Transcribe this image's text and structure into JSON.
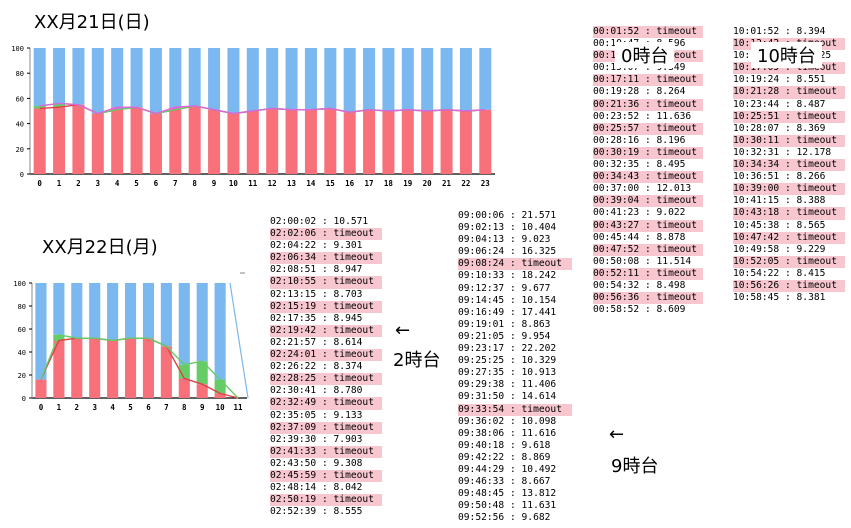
{
  "labels": {
    "day1_title": "XX月21日(日)",
    "day2_title": "XX月22日(月)",
    "hour0": "0時台",
    "hour10": "10時台",
    "hour2": "2時台",
    "hour9": "9時台",
    "arrow": "←"
  },
  "chart_data": [
    {
      "type": "bar",
      "stacked": true,
      "categories": [
        "0",
        "1",
        "2",
        "3",
        "4",
        "5",
        "6",
        "7",
        "8",
        "9",
        "10",
        "11",
        "12",
        "13",
        "14",
        "15",
        "16",
        "17",
        "18",
        "19",
        "20",
        "21",
        "22",
        "23"
      ],
      "ylim": [
        0,
        100
      ],
      "yticks": [
        "0",
        "20",
        "40",
        "60",
        "80",
        "100"
      ],
      "series": [
        {
          "color": "#f7707a",
          "values": [
            52,
            53,
            55,
            48,
            51,
            53,
            48,
            51,
            54,
            51,
            48,
            50,
            52,
            51,
            51,
            52,
            49,
            51,
            50,
            51,
            50,
            51,
            50,
            51
          ]
        },
        {
          "color": "#66cc66",
          "values": [
            2,
            3,
            0,
            0,
            0,
            0,
            0,
            0,
            0,
            0,
            0,
            0,
            0,
            0,
            0,
            0,
            0,
            0,
            0,
            0,
            0,
            0,
            0,
            0
          ]
        },
        {
          "color": "#dd66dd",
          "values": [
            0,
            0,
            0,
            0,
            2,
            0,
            0,
            2,
            0,
            0,
            0,
            0,
            0,
            0,
            0,
            0,
            0,
            0,
            0,
            0,
            0,
            0,
            0,
            0
          ]
        },
        {
          "color": "#7cb8f0",
          "values": [
            46,
            44,
            45,
            52,
            47,
            47,
            52,
            47,
            46,
            49,
            52,
            50,
            48,
            49,
            49,
            48,
            51,
            49,
            50,
            49,
            50,
            49,
            50,
            49
          ]
        }
      ]
    },
    {
      "type": "bar",
      "stacked": true,
      "categories": [
        "0",
        "1",
        "2",
        "3",
        "4",
        "5",
        "6",
        "7",
        "8",
        "9",
        "10",
        "11"
      ],
      "ylim": [
        0,
        100
      ],
      "yticks": [
        "0",
        "20",
        "40",
        "60",
        "80",
        "100"
      ],
      "series": [
        {
          "color": "#f7707a",
          "values": [
            16,
            50,
            52,
            52,
            50,
            52,
            52,
            45,
            17,
            12,
            4,
            0
          ]
        },
        {
          "color": "#66cc66",
          "values": [
            0,
            5,
            0,
            0,
            0,
            0,
            0,
            0,
            12,
            20,
            12,
            0
          ]
        },
        {
          "color": "#7cb8f0",
          "values": [
            84,
            45,
            48,
            48,
            50,
            48,
            48,
            55,
            71,
            68,
            84,
            0
          ]
        }
      ]
    }
  ],
  "log_00": [
    "00:01:52 : timeout",
    "00:10:47 : 8.596",
    "00:12:51 : timeout",
    "00:15:07 : 9.349",
    "00:17:11 : timeout",
    "00:19:28 : 8.264",
    "00:21:36 : timeout",
    "00:23:52 : 11.636",
    "00:25:57 : timeout",
    "00:28:16 : 8.196",
    "00:30:19 : timeout",
    "00:32:35 : 8.495",
    "00:34:43 : timeout",
    "00:37:00 : 12.013",
    "00:39:04 : timeout",
    "00:41:23 : 9.022",
    "00:43:27 : timeout",
    "00:45:44 : 8.878",
    "00:47:52 : timeout",
    "00:50:08 : 11.514",
    "00:52:11 : timeout",
    "00:54:32 : 8.498",
    "00:56:36 : timeout",
    "00:58:52 : 8.609"
  ],
  "log_10": [
    "10:01:52 : 8.394",
    "10:12:42 : timeout",
    "10:14:57 : 11.425",
    "10:17:05 : timeout",
    "10:19:24 : 8.551",
    "10:21:28 : timeout",
    "10:23:44 : 8.487",
    "10:25:51 : timeout",
    "10:28:07 : 8.369",
    "10:30:11 : timeout",
    "10:32:31 : 12.178",
    "10:34:34 : timeout",
    "10:36:51 : 8.266",
    "10:39:00 : timeout",
    "10:41:15 : 8.388",
    "10:43:18 : timeout",
    "10:45:38 : 8.565",
    "10:47:42 : timeout",
    "10:49:58 : 9.229",
    "10:52:05 : timeout",
    "10:54:22 : 8.415",
    "10:56:26 : timeout",
    "10:58:45 : 8.381"
  ],
  "log_02": [
    "02:00:02 : 10.571",
    "02:02:06 : timeout",
    "02:04:22 : 9.301",
    "02:06:34 : timeout",
    "02:08:51 : 8.947",
    "02:10:55 : timeout",
    "02:13:15 : 8.703",
    "02:15:19 : timeout",
    "02:17:35 : 8.945",
    "02:19:42 : timeout",
    "02:21:57 : 8.614",
    "02:24:01 : timeout",
    "02:26:22 : 8.374",
    "02:28:25 : timeout",
    "02:30:41 : 8.780",
    "02:32:49 : timeout",
    "02:35:05 : 9.133",
    "02:37:09 : timeout",
    "02:39:30 : 7.903",
    "02:41:33 : timeout",
    "02:43:50 : 9.308",
    "02:45:59 : timeout",
    "02:48:14 : 8.042",
    "02:50:19 : timeout",
    "02:52:39 : 8.555"
  ],
  "log_09": [
    "09:00:06 : 21.571",
    "09:02:13 : 10.404",
    "09:04:13 : 9.023",
    "09:06:24 : 16.325",
    "09:08:24 : timeout",
    "09:10:33 : 18.242",
    "09:12:37 : 9.677",
    "09:14:45 : 10.154",
    "09:16:49 : 17.441",
    "09:19:01 : 8.863",
    "09:21:05 : 9.954",
    "09:23:17 : 22.202",
    "09:25:25 : 10.329",
    "09:27:35 : 10.913",
    "09:29:38 : 11.406",
    "09:31:50 : 14.614",
    "09:33:54 : timeout",
    "09:36:02 : 10.098",
    "09:38:06 : 11.616",
    "09:40:18 : 9.618",
    "09:42:22 : 8.869",
    "09:44:29 : 10.492",
    "09:46:33 : 8.667",
    "09:48:45 : 13.812",
    "09:50:48 : 11.631",
    "09:52:56 : 9.682"
  ]
}
